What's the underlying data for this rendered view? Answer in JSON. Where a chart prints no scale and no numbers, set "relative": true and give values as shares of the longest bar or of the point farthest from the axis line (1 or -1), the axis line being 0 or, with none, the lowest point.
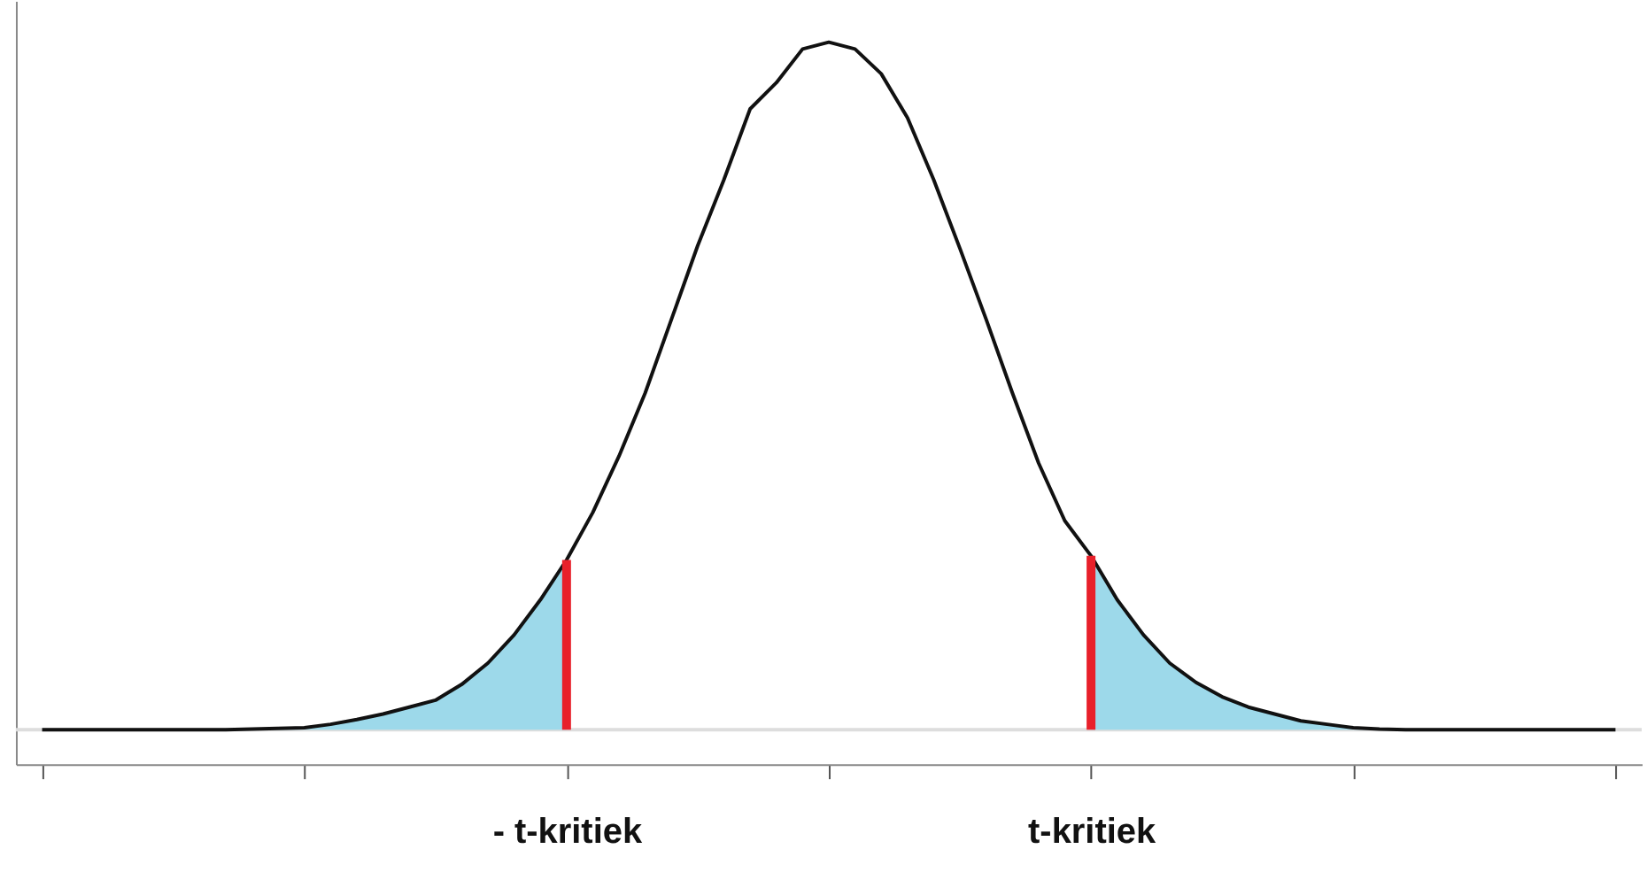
{
  "chart_data": {
    "type": "line",
    "relative": true,
    "categories": [
      null,
      null,
      null,
      null,
      null,
      null,
      null,
      null,
      null,
      null,
      null,
      null,
      null,
      null,
      null,
      null,
      null,
      null,
      null,
      null,
      "- t-kritiek",
      null,
      null,
      null,
      null,
      null,
      null,
      null,
      null,
      null,
      null,
      null,
      null,
      null,
      null,
      null,
      null,
      null,
      null,
      null,
      "t-kritiek",
      null,
      null,
      null,
      null,
      null,
      null,
      null,
      null,
      null,
      null,
      null,
      null,
      null,
      null,
      null,
      null,
      null,
      null,
      null,
      null
    ],
    "series": [
      {
        "type": "area",
        "color": "#9dd9ea",
        "values": [
          null,
          null,
          null,
          null,
          null,
          null,
          null,
          null,
          0.001,
          0.002,
          0.003,
          0.008,
          0.015,
          0.023,
          0.033,
          0.043,
          0.066,
          0.097,
          0.138,
          0.189,
          0.247,
          null,
          null,
          null,
          null,
          null,
          null,
          null,
          null,
          null,
          null,
          null,
          null,
          null,
          null,
          null,
          null,
          null,
          null,
          null,
          null,
          null,
          null,
          null,
          null,
          null,
          null,
          null,
          null,
          null,
          null,
          null,
          null,
          null,
          null,
          null,
          null,
          null,
          null,
          null,
          null
        ]
      },
      {
        "type": "area",
        "color": "#9dd9ea",
        "values": [
          null,
          null,
          null,
          null,
          null,
          null,
          null,
          null,
          null,
          null,
          null,
          null,
          null,
          null,
          null,
          null,
          null,
          null,
          null,
          null,
          null,
          null,
          null,
          null,
          null,
          null,
          null,
          null,
          null,
          null,
          null,
          null,
          null,
          null,
          null,
          null,
          null,
          null,
          null,
          null,
          0.253,
          0.189,
          0.138,
          0.097,
          0.069,
          0.048,
          0.033,
          0.023,
          0.013,
          0.008,
          0.003,
          0.001,
          null,
          null,
          null,
          null,
          null,
          null,
          null,
          null,
          null
        ]
      },
      {
        "color": "#111111",
        "values": [
          0,
          0,
          0,
          0,
          0,
          0,
          0,
          0,
          0.001,
          0.002,
          0.003,
          0.008,
          0.015,
          0.023,
          0.033,
          0.043,
          0.066,
          0.097,
          0.138,
          0.189,
          0.247,
          0.316,
          0.398,
          0.49,
          0.597,
          0.704,
          0.8,
          0.903,
          0.941,
          0.99,
          1,
          0.99,
          0.954,
          0.89,
          0.8,
          0.7,
          0.597,
          0.49,
          0.388,
          0.304,
          0.253,
          0.189,
          0.138,
          0.097,
          0.069,
          0.048,
          0.033,
          0.023,
          0.013,
          0.008,
          0.003,
          0.001,
          0,
          0,
          0,
          0,
          0,
          0,
          0,
          0,
          0
        ]
      }
    ],
    "ref_lines": [
      {
        "axis": "x",
        "value": "- t-kritiek",
        "color": "#e8202a"
      },
      {
        "axis": "x",
        "value": "t-kritiek",
        "color": "#e8202a"
      }
    ],
    "grid": false
  }
}
